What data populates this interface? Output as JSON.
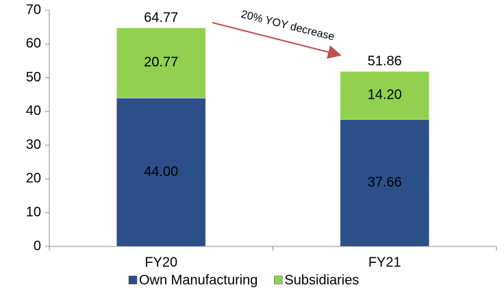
{
  "chart_data": {
    "type": "stacked_bar",
    "categories": [
      "FY20",
      "FY21"
    ],
    "series": [
      {
        "name": "Own Manufacturing",
        "color": "#2c4f8a",
        "values": [
          44.0,
          37.66
        ],
        "value_labels": [
          "44.00",
          "37.66"
        ]
      },
      {
        "name": "Subsidiaries",
        "color": "#92d050",
        "values": [
          20.77,
          14.2
        ],
        "value_labels": [
          "20.77",
          "14.20"
        ]
      }
    ],
    "totals": [
      64.77,
      51.86
    ],
    "annotation": "20% YOY decrease",
    "ylim": [
      0,
      70
    ],
    "yticks": [
      0,
      10,
      20,
      30,
      40,
      50,
      60,
      70
    ],
    "grid": false,
    "legend": "bottom"
  }
}
